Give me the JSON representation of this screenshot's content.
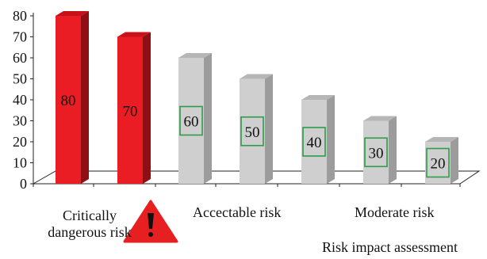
{
  "chart_data": {
    "type": "bar",
    "style": "3d-columns",
    "categories": [
      "",
      "",
      "",
      "",
      "",
      "",
      ""
    ],
    "values": [
      80,
      70,
      60,
      50,
      40,
      30,
      20
    ],
    "data_labels": [
      "80",
      "70",
      "60",
      "50",
      "40",
      "30",
      "20"
    ],
    "ylim": [
      0,
      80
    ],
    "yticks": [
      "0",
      "10",
      "20",
      "30",
      "40",
      "50",
      "60",
      "70",
      "80"
    ],
    "grid": false,
    "legend": "none",
    "group_labels": [
      {
        "text_line1": "Critically",
        "text_line2": "dangerous risk"
      },
      {
        "text": "Accectable risk"
      },
      {
        "text": "Moderate risk"
      }
    ],
    "footer_label": "Risk impact assessment",
    "warning_icon": "warning-triangle-icon",
    "colors": {
      "critical_front": "#ea1c24",
      "critical_side": "#8e1015",
      "critical_top": "#c8121a",
      "normal_front": "#cfcfcf",
      "normal_side": "#9c9c9c",
      "normal_top": "#b6b6b6",
      "label_box_border": "#2e9c4a",
      "warning_red": "#e62021"
    },
    "critical_bars": [
      0,
      1
    ]
  }
}
